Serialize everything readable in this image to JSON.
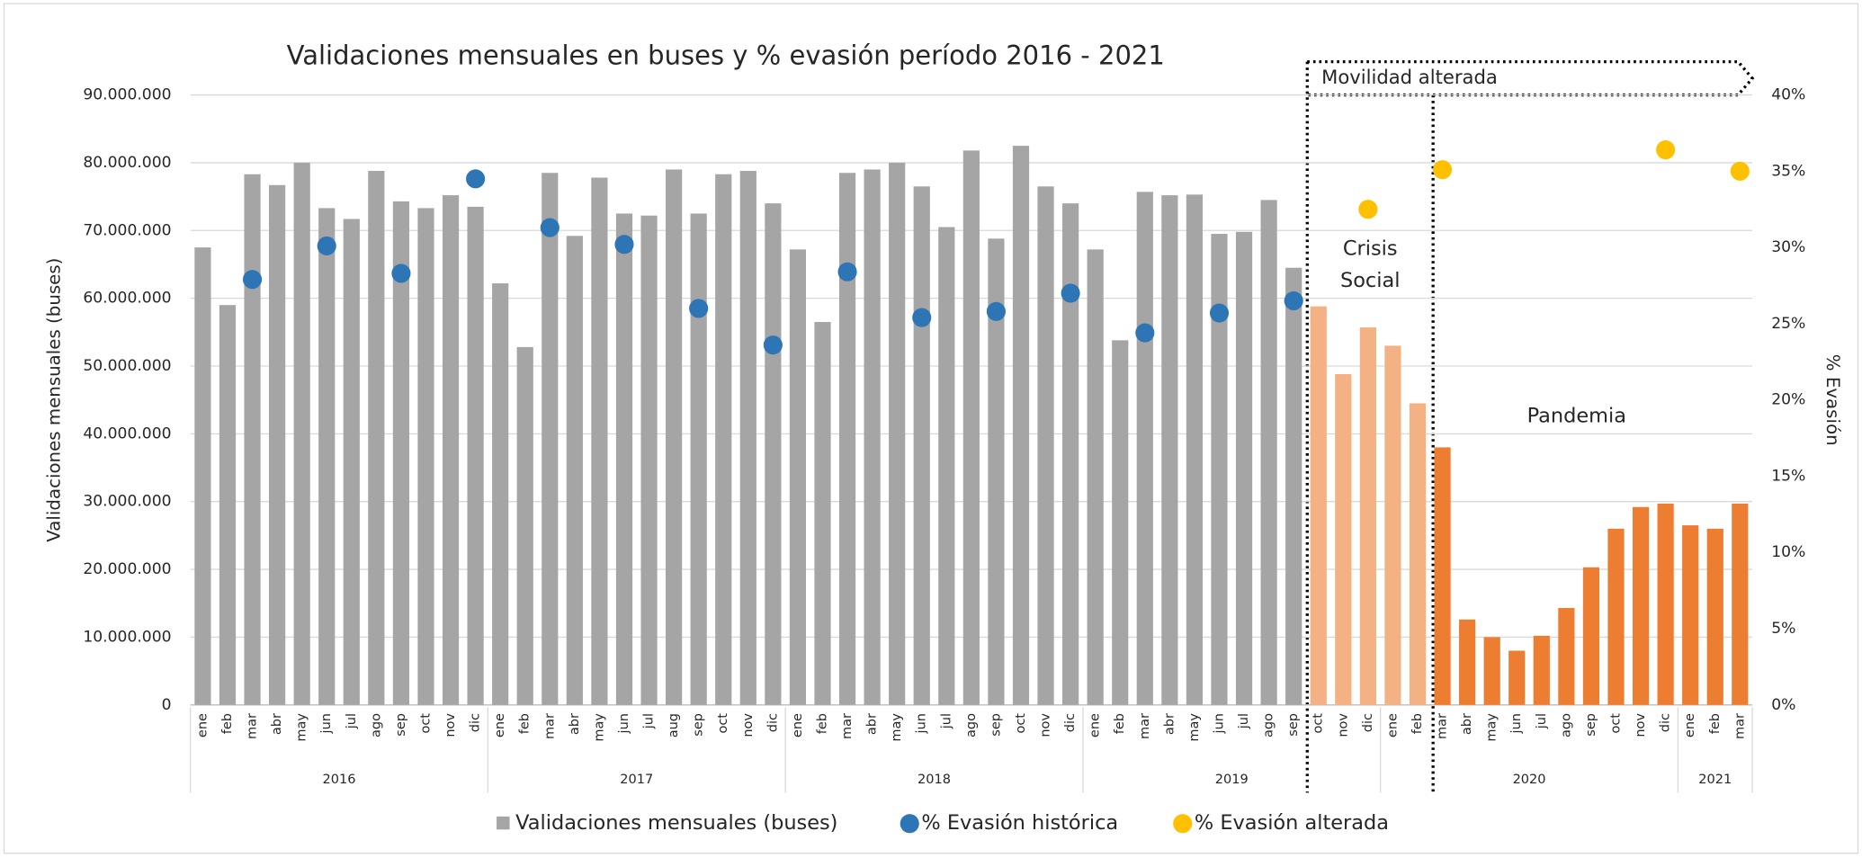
{
  "chart_data": {
    "type": "bar",
    "title": "Validaciones mensuales en buses y % evasión período 2016 - 2021",
    "y_label": "Validaciones mensuales (buses)",
    "y2_label": "% Evasión",
    "annotations": {
      "movilidad": "Movilidad alterada",
      "crisis": [
        "Crisis",
        "Social"
      ],
      "pandemia": "Pandemia"
    },
    "groups": [
      {
        "name": "2016",
        "categories": [
          "ene",
          "feb",
          "mar",
          "abr",
          "may",
          "jun",
          "jul",
          "ago",
          "sep",
          "oct",
          "nov",
          "dic"
        ]
      },
      {
        "name": "2017",
        "categories": [
          "ene",
          "feb",
          "mar",
          "abr",
          "may",
          "jun",
          "jul",
          "aug",
          "sep",
          "oct",
          "nov",
          "dic"
        ]
      },
      {
        "name": "2018",
        "categories": [
          "ene",
          "feb",
          "mar",
          "abr",
          "may",
          "jun",
          "jul",
          "ago",
          "sep",
          "oct",
          "nov",
          "dic"
        ]
      },
      {
        "name": "2019",
        "categories": [
          "ene",
          "feb",
          "mar",
          "abr",
          "may",
          "jun",
          "jul",
          "ago",
          "sep",
          "oct",
          "nov",
          "dic"
        ]
      },
      {
        "name": "2020",
        "categories": [
          "ene",
          "feb",
          "mar",
          "abr",
          "may",
          "jun",
          "jul",
          "ago",
          "sep",
          "oct",
          "nov",
          "dic"
        ]
      },
      {
        "name": "2021",
        "categories": [
          "ene",
          "feb",
          "mar"
        ]
      }
    ],
    "ylim": [
      0,
      90000000
    ],
    "yticks": [
      {
        "value": 0,
        "label": "0"
      },
      {
        "value": 10000000,
        "label": "10.000.000"
      },
      {
        "value": 20000000,
        "label": "20.000.000"
      },
      {
        "value": 30000000,
        "label": "30.000.000"
      },
      {
        "value": 40000000,
        "label": "40.000.000"
      },
      {
        "value": 50000000,
        "label": "50.000.000"
      },
      {
        "value": 60000000,
        "label": "60.000.000"
      },
      {
        "value": 70000000,
        "label": "70.000.000"
      },
      {
        "value": 80000000,
        "label": "80.000.000"
      },
      {
        "value": 90000000,
        "label": "90.000.000"
      }
    ],
    "y2lim": [
      0,
      40
    ],
    "y2ticks": [
      {
        "value": 0,
        "label": "0%"
      },
      {
        "value": 5,
        "label": "5%"
      },
      {
        "value": 10,
        "label": "10%"
      },
      {
        "value": 15,
        "label": "15%"
      },
      {
        "value": 20,
        "label": "20%"
      },
      {
        "value": 25,
        "label": "25%"
      },
      {
        "value": 30,
        "label": "30%"
      },
      {
        "value": 35,
        "label": "35%"
      },
      {
        "value": 40,
        "label": "40%"
      }
    ],
    "grid": true,
    "series": [
      {
        "name": "Validaciones mensuales (buses)",
        "type": "bar",
        "color": "#a5a5a5",
        "colors": [
          "#a5a5a5",
          "#a5a5a5",
          "#a5a5a5",
          "#a5a5a5",
          "#a5a5a5",
          "#a5a5a5",
          "#a5a5a5",
          "#a5a5a5",
          "#a5a5a5",
          "#a5a5a5",
          "#a5a5a5",
          "#a5a5a5",
          "#a5a5a5",
          "#a5a5a5",
          "#a5a5a5",
          "#a5a5a5",
          "#a5a5a5",
          "#a5a5a5",
          "#a5a5a5",
          "#a5a5a5",
          "#a5a5a5",
          "#a5a5a5",
          "#a5a5a5",
          "#a5a5a5",
          "#a5a5a5",
          "#a5a5a5",
          "#a5a5a5",
          "#a5a5a5",
          "#a5a5a5",
          "#a5a5a5",
          "#a5a5a5",
          "#a5a5a5",
          "#a5a5a5",
          "#a5a5a5",
          "#a5a5a5",
          "#a5a5a5",
          "#a5a5a5",
          "#a5a5a5",
          "#a5a5a5",
          "#a5a5a5",
          "#a5a5a5",
          "#a5a5a5",
          "#a5a5a5",
          "#a5a5a5",
          "#a5a5a5",
          "#f4b183",
          "#f4b183",
          "#f4b183",
          "#f4b183",
          "#f4b183",
          "#ed7d31",
          "#ed7d31",
          "#ed7d31",
          "#ed7d31",
          "#ed7d31",
          "#ed7d31",
          "#ed7d31",
          "#ed7d31",
          "#ed7d31",
          "#ed7d31",
          "#ed7d31",
          "#ed7d31",
          "#ed7d31"
        ],
        "values": [
          67500000,
          59000000,
          78300000,
          76700000,
          80000000,
          73300000,
          71700000,
          78800000,
          74300000,
          73300000,
          75200000,
          73500000,
          62200000,
          52800000,
          78500000,
          69200000,
          77800000,
          72500000,
          72200000,
          79000000,
          72500000,
          78300000,
          78800000,
          74000000,
          67200000,
          56500000,
          78500000,
          79000000,
          80000000,
          76500000,
          70500000,
          81800000,
          68800000,
          82500000,
          76500000,
          74000000,
          67200000,
          53800000,
          75700000,
          75200000,
          75300000,
          69500000,
          69800000,
          74500000,
          64500000,
          58800000,
          48800000,
          55700000,
          53000000,
          44500000,
          38000000,
          12600000,
          10000000,
          8000000,
          10200000,
          14300000,
          20300000,
          26000000,
          29200000,
          29700000,
          26500000,
          26000000,
          29700000
        ]
      },
      {
        "name": "% Evasión histórica",
        "type": "scatter",
        "axis": "y2",
        "color": "#2e75b6",
        "values": [
          null,
          null,
          27.9,
          null,
          null,
          30.1,
          null,
          null,
          28.3,
          null,
          null,
          34.5,
          null,
          null,
          31.3,
          null,
          null,
          30.2,
          null,
          null,
          26.0,
          null,
          null,
          23.6,
          null,
          null,
          28.4,
          null,
          null,
          25.4,
          null,
          null,
          25.8,
          null,
          null,
          27.0,
          null,
          null,
          24.4,
          null,
          null,
          25.7,
          null,
          null,
          26.5,
          null,
          null,
          null,
          null,
          null,
          null,
          null,
          null,
          null,
          null,
          null,
          null,
          null,
          null,
          null,
          null,
          null,
          null
        ]
      },
      {
        "name": "% Evasión alterada",
        "type": "scatter",
        "axis": "y2",
        "color": "#ffc000",
        "values": [
          null,
          null,
          null,
          null,
          null,
          null,
          null,
          null,
          null,
          null,
          null,
          null,
          null,
          null,
          null,
          null,
          null,
          null,
          null,
          null,
          null,
          null,
          null,
          null,
          null,
          null,
          null,
          null,
          null,
          null,
          null,
          null,
          null,
          null,
          null,
          null,
          null,
          null,
          null,
          null,
          null,
          null,
          null,
          null,
          null,
          null,
          null,
          32.5,
          null,
          null,
          35.1,
          null,
          null,
          null,
          null,
          null,
          null,
          null,
          null,
          36.4,
          null,
          null,
          35.0
        ]
      }
    ]
  }
}
